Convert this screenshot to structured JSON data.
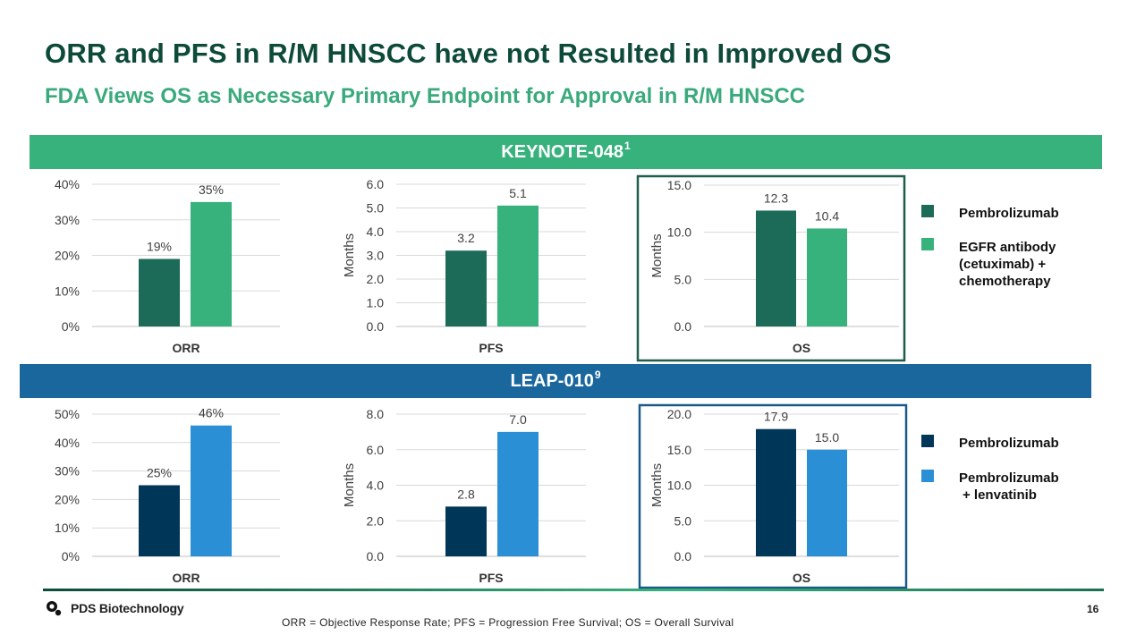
{
  "title": "ORR and PFS in R/M HNSCC have not Resulted in Improved OS",
  "subtitle": "FDA Views OS as Necessary Primary Endpoint for Approval in R/M HNSCC",
  "bands": {
    "keynote": {
      "label": "KEYNOTE-048",
      "sup": "1"
    },
    "leap": {
      "label": "LEAP-010",
      "sup": "9"
    }
  },
  "colors": {
    "keynote_a": "#1b6b58",
    "keynote_b": "#37b27d",
    "leap_a": "#003658",
    "leap_b": "#2b8fd6",
    "keynote_band": "#37b27d",
    "leap_band": "#1a679e"
  },
  "legend": {
    "keynote": [
      {
        "label": "Pembrolizumab"
      },
      {
        "label": "EGFR antibody (cetuximab) + chemotherapy",
        "lines": [
          "EGFR antibody",
          "(cetuximab) +",
          "chemotherapy"
        ]
      }
    ],
    "leap": [
      {
        "label": "Pembrolizumab"
      },
      {
        "label": "Pembrolizumab + lenvatinib",
        "lines": [
          "Pembrolizumab",
          "+ lenvatinib"
        ]
      }
    ]
  },
  "chart_data": [
    {
      "id": "k-orr",
      "type": "bar",
      "study": "KEYNOTE-048",
      "category": "ORR",
      "ylabel": "",
      "ylim": [
        0,
        40
      ],
      "ticks": [
        "0%",
        "10%",
        "20%",
        "30%",
        "40%"
      ],
      "series": [
        {
          "name": "Pembrolizumab",
          "values": [
            19
          ],
          "label": "19%"
        },
        {
          "name": "EGFR antibody (cetuximab) + chemotherapy",
          "values": [
            35
          ],
          "label": "35%"
        }
      ]
    },
    {
      "id": "k-pfs",
      "type": "bar",
      "study": "KEYNOTE-048",
      "category": "PFS",
      "ylabel": "Months",
      "ylim": [
        0,
        6
      ],
      "ticks": [
        "0.0",
        "1.0",
        "2.0",
        "3.0",
        "4.0",
        "5.0",
        "6.0"
      ],
      "series": [
        {
          "name": "Pembrolizumab",
          "values": [
            3.2
          ],
          "label": "3.2"
        },
        {
          "name": "EGFR antibody (cetuximab) + chemotherapy",
          "values": [
            5.1
          ],
          "label": "5.1"
        }
      ]
    },
    {
      "id": "k-os",
      "type": "bar",
      "study": "KEYNOTE-048",
      "category": "OS",
      "ylabel": "Months",
      "ylim": [
        0,
        15
      ],
      "ticks": [
        "0.0",
        "5.0",
        "10.0",
        "15.0"
      ],
      "series": [
        {
          "name": "Pembrolizumab",
          "values": [
            12.3
          ],
          "label": "12.3"
        },
        {
          "name": "EGFR antibody (cetuximab) + chemotherapy",
          "values": [
            10.4
          ],
          "label": "10.4"
        }
      ]
    },
    {
      "id": "l-orr",
      "type": "bar",
      "study": "LEAP-010",
      "category": "ORR",
      "ylabel": "",
      "ylim": [
        0,
        50
      ],
      "ticks": [
        "0%",
        "10%",
        "20%",
        "30%",
        "40%",
        "50%"
      ],
      "series": [
        {
          "name": "Pembrolizumab",
          "values": [
            25
          ],
          "label": "25%"
        },
        {
          "name": "Pembrolizumab + lenvatinib",
          "values": [
            46
          ],
          "label": "46%"
        }
      ]
    },
    {
      "id": "l-pfs",
      "type": "bar",
      "study": "LEAP-010",
      "category": "PFS",
      "ylabel": "Months",
      "ylim": [
        0,
        8
      ],
      "ticks": [
        "0.0",
        "2.0",
        "4.0",
        "6.0",
        "8.0"
      ],
      "series": [
        {
          "name": "Pembrolizumab",
          "values": [
            2.8
          ],
          "label": "2.8"
        },
        {
          "name": "Pembrolizumab + lenvatinib",
          "values": [
            7.0
          ],
          "label": "7.0"
        }
      ]
    },
    {
      "id": "l-os",
      "type": "bar",
      "study": "LEAP-010",
      "category": "OS",
      "ylabel": "Months",
      "ylim": [
        0,
        20
      ],
      "ticks": [
        "0.0",
        "5.0",
        "10.0",
        "15.0",
        "20.0"
      ],
      "series": [
        {
          "name": "Pembrolizumab",
          "values": [
            17.9
          ],
          "label": "17.9"
        },
        {
          "name": "Pembrolizumab + lenvatinib",
          "values": [
            15.0
          ],
          "label": "15.0"
        }
      ]
    }
  ],
  "footer": {
    "logo_text": "PDS Biotechnology",
    "footnote": "ORR = Objective Response Rate; PFS = Progression Free Survival; OS = Overall Survival",
    "page_number": "16"
  }
}
